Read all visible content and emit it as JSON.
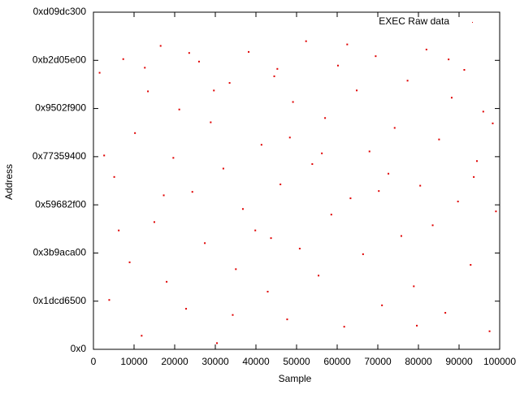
{
  "chart_data": {
    "type": "scatter",
    "x_label": "Sample",
    "y_label": "Address",
    "xlim": [
      0,
      100000
    ],
    "xticks": [
      0,
      10000,
      20000,
      30000,
      40000,
      50000,
      60000,
      70000,
      80000,
      90000,
      100000
    ],
    "ylim": [
      0,
      3500000000
    ],
    "yticks": [
      {
        "value": 0,
        "label": "0x0"
      },
      {
        "value": 500000000,
        "label": "0x1dcd6500"
      },
      {
        "value": 1000000000,
        "label": "0x3b9aca00"
      },
      {
        "value": 1500000000,
        "label": "0x59682f00"
      },
      {
        "value": 2000000000,
        "label": "0x77359400"
      },
      {
        "value": 2500000000,
        "label": "0x9502f900"
      },
      {
        "value": 3000000000,
        "label": "0xb2d05e00"
      },
      {
        "value": 3500000000,
        "label": "0xd09dc300"
      }
    ],
    "legend": "top-right",
    "series": [
      {
        "name": "EXEC Raw data",
        "color": "#e00000",
        "x": [
          1520,
          3890,
          5120,
          7340,
          8910,
          10230,
          11870,
          13420,
          14990,
          16540,
          18020,
          19670,
          21130,
          22810,
          24350,
          25990,
          27420,
          28870,
          30410,
          31980,
          33520,
          35060,
          36790,
          38210,
          39840,
          41370,
          42900,
          44510,
          46030,
          47690,
          49120,
          50780,
          52340,
          53870,
          55410,
          57020,
          58560,
          60190,
          61730,
          63280,
          64810,
          66370,
          67950,
          69480,
          71030,
          72610,
          74150,
          75790,
          77320,
          78860,
          80440,
          81970,
          83510,
          85080,
          86620,
          88190,
          89730,
          91290,
          92850,
          94400,
          95960,
          97510,
          99080,
          2640,
          6230,
          12650,
          17310,
          23570,
          29650,
          34290,
          43710,
          48350,
          56230,
          62470,
          70250,
          79610,
          87430,
          93620,
          98290,
          45270
        ],
        "values": [
          2871003412,
          512339870,
          1789402311,
          3012876543,
          903412765,
          2245019876,
          140982334,
          2678123490,
          1320987654,
          3150234987,
          701234561,
          1987654320,
          2490012345,
          420987123,
          1634509876,
          2987123456,
          1102345678,
          2356789012,
          64123987,
          1876543210,
          2765432109,
          832109876,
          1456789012,
          3087654321,
          1234509876,
          2123456789,
          598765432,
          2834567890,
          1712345678,
          310987654,
          2567890123,
          1045678901,
          3198765432,
          1923456780,
          765432198,
          2401234567,
          1398765432,
          2945678901,
          234567890,
          1567890123,
          2687654321,
          987654321,
          2054321098,
          3043210987,
          456789012,
          1823456789,
          2298765432,
          1176543210,
          2789012345,
          654321098,
          1698765432,
          3112345678,
          1287654321,
          2178901234,
          378901234,
          2612345678,
          1534567890,
          2901234567,
          876543210,
          1954321098,
          2467890123,
          187654321,
          1432109876,
          2012345678,
          1234098765,
          2923456789,
          1598765430,
          3076543210,
          2687012345,
          356789012,
          1154321098,
          2198765432,
          2034567890,
          3165432109,
          1643210987,
          245678901,
          3009876543,
          1789012345,
          2345678901,
          2911234567
        ]
      }
    ]
  }
}
